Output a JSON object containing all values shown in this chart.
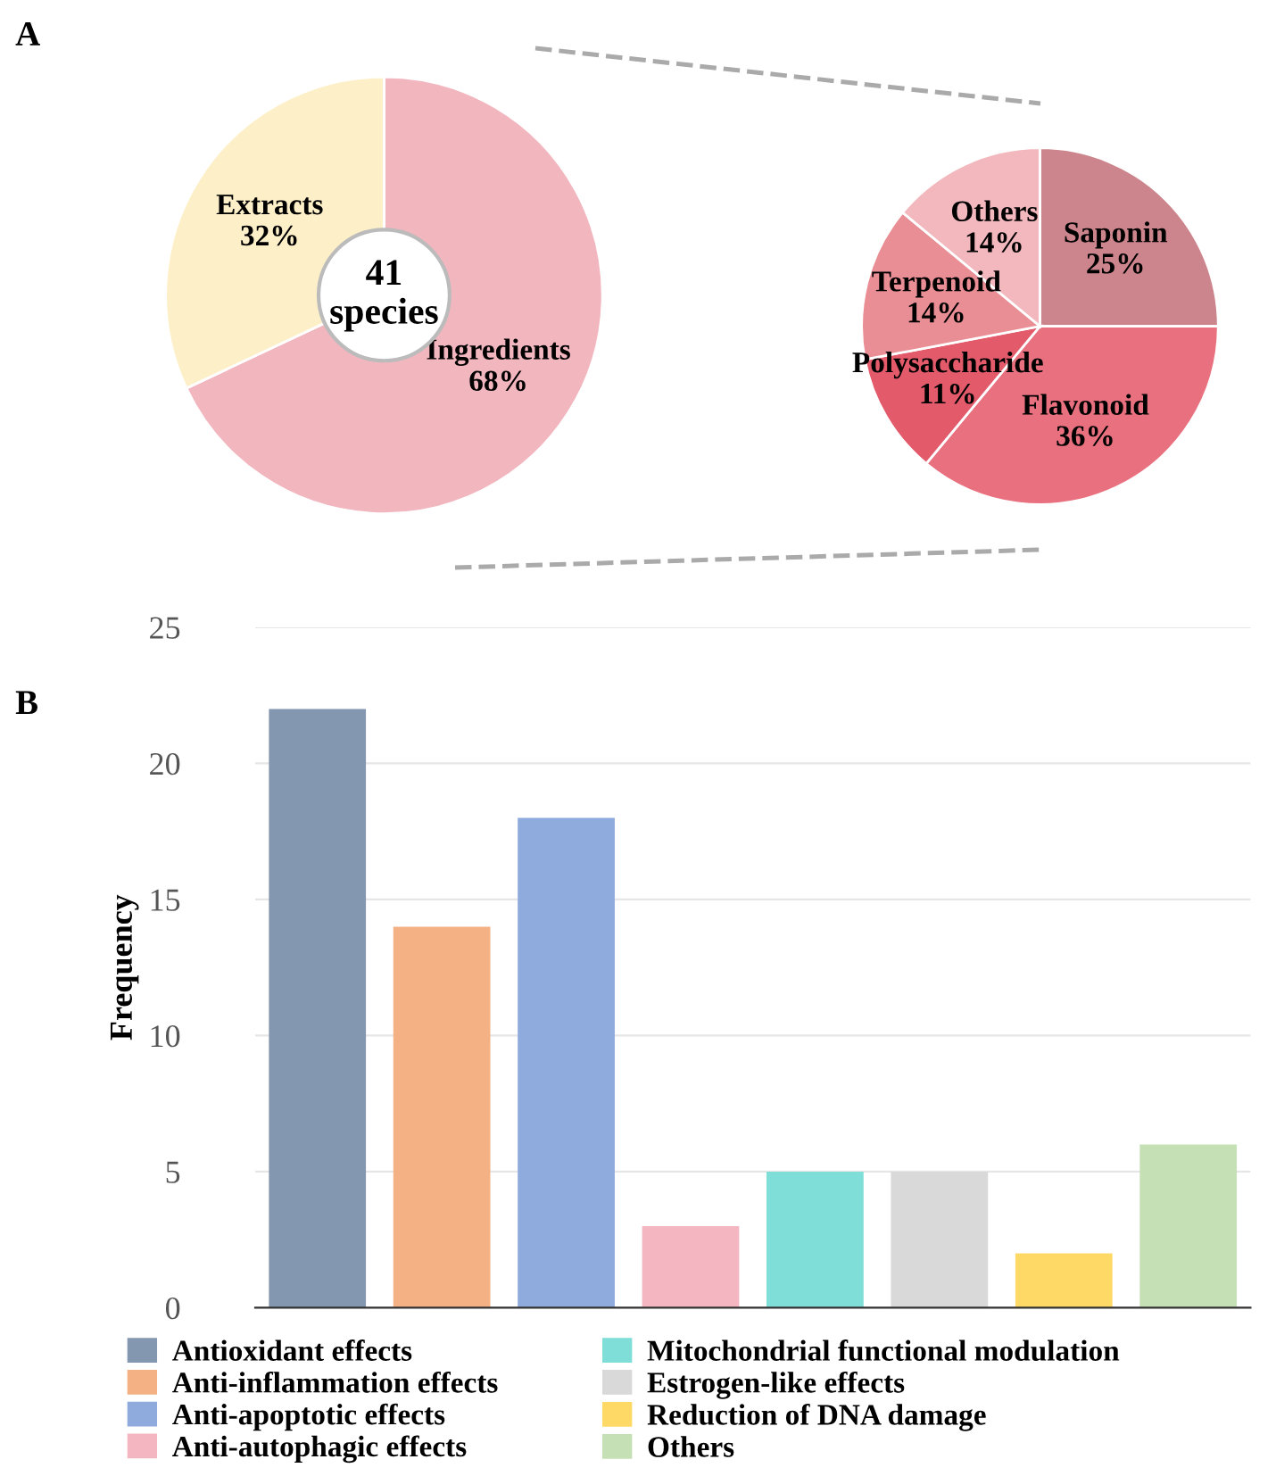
{
  "chart_data": [
    {
      "type": "donut",
      "categories": [
        "Ingredients",
        "Extracts"
      ],
      "values": [
        68,
        32
      ],
      "value_labels": [
        "68%",
        "32%"
      ],
      "colors": [
        "#f2b6bf",
        "#fdf0c8"
      ],
      "annotations": [
        "A",
        "41\nspecies"
      ]
    },
    {
      "type": "pie",
      "categories": [
        "Saponin",
        "Flavonoid",
        "Polysaccharide",
        "Terpenoid",
        "Others"
      ],
      "values": [
        25,
        36,
        11,
        14,
        14
      ],
      "value_labels": [
        "25%",
        "36%",
        "11%",
        "14%",
        "14%"
      ],
      "colors": [
        "#cc858c",
        "#e9717f",
        "#e35a6b",
        "#ea8e95",
        "#f2b8bd"
      ]
    },
    {
      "type": "bar",
      "categories": [
        null,
        null,
        null,
        null,
        null,
        null,
        null,
        null
      ],
      "ylabel": "Frequency",
      "ylim": [
        0,
        25
      ],
      "yticks": [
        0,
        5,
        10,
        15,
        20,
        25
      ],
      "grid": "y",
      "legend": "bottom",
      "annotations": [
        "B"
      ],
      "series": [
        {
          "name": "Antioxidant effects",
          "color": "#8497b0",
          "values": [
            22,
            null,
            null,
            null,
            null,
            null,
            null,
            null
          ]
        },
        {
          "name": "Anti-inflammation effects",
          "color": "#f4b183",
          "values": [
            null,
            14,
            null,
            null,
            null,
            null,
            null,
            null
          ]
        },
        {
          "name": "Anti-apoptotic effects",
          "color": "#8faadc",
          "values": [
            null,
            null,
            18,
            null,
            null,
            null,
            null,
            null
          ]
        },
        {
          "name": "Anti-autophagic effects",
          "color": "#f4b6c0",
          "values": [
            null,
            null,
            null,
            3,
            null,
            null,
            null,
            null
          ]
        },
        {
          "name": "Mitochondrial functional modulation",
          "color": "#7fded8",
          "values": [
            null,
            null,
            null,
            null,
            5,
            null,
            null,
            null
          ]
        },
        {
          "name": "Estrogen-like effects",
          "color": "#d9d9d9",
          "values": [
            null,
            null,
            null,
            null,
            null,
            5,
            null,
            null
          ]
        },
        {
          "name": "Reduction of DNA damage",
          "color": "#ffd966",
          "values": [
            null,
            null,
            null,
            null,
            null,
            null,
            2,
            null
          ]
        },
        {
          "name": "Others",
          "color": "#c5e0b4",
          "values": [
            null,
            null,
            null,
            null,
            null,
            null,
            null,
            6
          ]
        }
      ]
    }
  ]
}
